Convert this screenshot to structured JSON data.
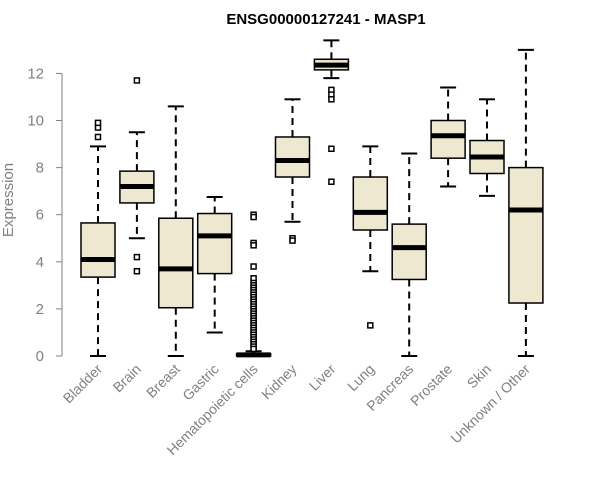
{
  "chart_data": {
    "type": "boxplot",
    "title": "ENSG00000127241 - MASP1",
    "xlabel": "",
    "ylabel": "Expression",
    "ylim": [
      0,
      13.5
    ],
    "yticks": [
      0,
      2,
      4,
      6,
      8,
      10,
      12
    ],
    "box_color": "#efe8d0",
    "categories": [
      "Bladder",
      "Brain",
      "Breast",
      "Gastric",
      "Hematopoietic cells",
      "Kidney",
      "Liver",
      "Lung",
      "Pancreas",
      "Prostate",
      "Skin",
      "Unknown / Other"
    ],
    "series": [
      {
        "name": "Bladder",
        "min": 0,
        "q1": 3.35,
        "median": 4.1,
        "q3": 5.65,
        "max": 8.9,
        "outliers": [
          9.3,
          9.7,
          9.9
        ]
      },
      {
        "name": "Brain",
        "min": 5.0,
        "q1": 6.5,
        "median": 7.2,
        "q3": 7.85,
        "max": 9.5,
        "outliers": [
          11.7,
          4.2,
          3.6
        ]
      },
      {
        "name": "Breast",
        "min": 0,
        "q1": 2.05,
        "median": 3.7,
        "q3": 5.85,
        "max": 10.6,
        "outliers": []
      },
      {
        "name": "Gastric",
        "min": 1.0,
        "q1": 3.5,
        "median": 5.1,
        "q3": 6.05,
        "max": 6.75,
        "outliers": []
      },
      {
        "name": "Hematopoietic cells",
        "min": 0,
        "q1": 0,
        "median": 0.05,
        "q3": 0.1,
        "max": 0.2,
        "outliers": [
          6.0,
          5.9,
          4.8,
          4.7,
          3.8,
          3.3,
          3.1,
          3.0,
          2.9,
          2.8,
          2.7,
          2.6,
          2.5,
          2.4,
          2.3,
          2.2,
          2.1,
          2.0,
          1.9,
          1.8,
          1.7,
          1.6,
          1.5,
          1.4,
          1.3,
          1.2,
          1.1,
          1.0,
          0.9,
          0.8,
          0.7,
          0.6,
          0.5,
          0.4,
          0.3
        ]
      },
      {
        "name": "Kidney",
        "min": 5.7,
        "q1": 7.6,
        "median": 8.3,
        "q3": 9.3,
        "max": 10.9,
        "outliers": [
          5.0,
          4.9
        ]
      },
      {
        "name": "Liver",
        "min": 11.8,
        "q1": 12.15,
        "median": 12.35,
        "q3": 12.6,
        "max": 13.4,
        "outliers": [
          11.3,
          11.1,
          10.9,
          8.8,
          7.4
        ]
      },
      {
        "name": "Lung",
        "min": 3.6,
        "q1": 5.35,
        "median": 6.1,
        "q3": 7.6,
        "max": 8.9,
        "outliers": [
          1.3
        ]
      },
      {
        "name": "Pancreas",
        "min": 0,
        "q1": 3.25,
        "median": 4.6,
        "q3": 5.6,
        "max": 8.6,
        "outliers": []
      },
      {
        "name": "Prostate",
        "min": 7.2,
        "q1": 8.4,
        "median": 9.35,
        "q3": 10.0,
        "max": 11.4,
        "outliers": []
      },
      {
        "name": "Skin",
        "min": 6.8,
        "q1": 7.75,
        "median": 8.45,
        "q3": 9.15,
        "max": 10.9,
        "outliers": []
      },
      {
        "name": "Unknown / Other",
        "min": 0,
        "q1": 2.25,
        "median": 6.2,
        "q3": 8.0,
        "max": 13.0,
        "outliers": []
      }
    ]
  }
}
